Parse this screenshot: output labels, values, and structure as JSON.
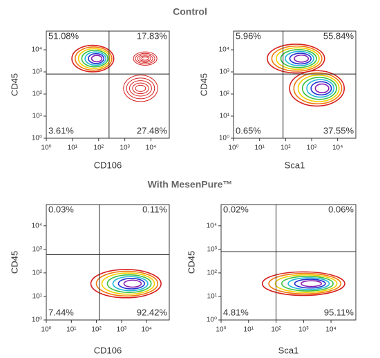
{
  "panel_titles": [
    "Control",
    "With MesenPure™"
  ],
  "chart_data": [
    {
      "type": "contour",
      "x_label": "CD106",
      "y_label": "CD45",
      "xscale": "log",
      "yscale": "log",
      "xlim": [
        1,
        50000
      ],
      "ylim": [
        1,
        70000
      ],
      "xticks": [
        {
          "value": 1,
          "label": "10⁰"
        },
        {
          "value": 10,
          "label": "10¹"
        },
        {
          "value": 100,
          "label": "10²"
        },
        {
          "value": 1000,
          "label": "10³"
        },
        {
          "value": 10000,
          "label": "10⁴"
        }
      ],
      "yticks": [
        {
          "value": 1,
          "label": "10⁰"
        },
        {
          "value": 10,
          "label": "10¹"
        },
        {
          "value": 100,
          "label": "10²"
        },
        {
          "value": 1000,
          "label": "10³"
        },
        {
          "value": 10000,
          "label": "10⁴"
        }
      ],
      "gate": {
        "x": 250,
        "y": 800
      },
      "quadrants": {
        "values": [
          51.08,
          17.83,
          3.61,
          27.48
        ],
        "value_labels": [
          "51.08%",
          "17.83%",
          "3.61%",
          "27.48%"
        ]
      },
      "contour_colors": [
        "#d62020",
        "#f07a10",
        "#f2d000",
        "#3cc040",
        "#20b8d8",
        "#2030d0",
        "#8a20b0"
      ],
      "populations": [
        {
          "x": 60,
          "y": 4000,
          "sx": 0.8,
          "sy": 0.6,
          "colored": true
        },
        {
          "x": 6000,
          "y": 4000,
          "sx": 0.45,
          "sy": 0.3,
          "colored": false
        },
        {
          "x": 4000,
          "y": 180,
          "sx": 0.65,
          "sy": 0.6,
          "colored": false
        }
      ]
    },
    {
      "type": "contour",
      "x_label": "Sca1",
      "y_label": "CD45",
      "xscale": "log",
      "yscale": "log",
      "xlim": [
        1,
        50000
      ],
      "ylim": [
        1,
        70000
      ],
      "xticks": [
        {
          "value": 1,
          "label": "10⁰"
        },
        {
          "value": 10,
          "label": "10¹"
        },
        {
          "value": 100,
          "label": "10²"
        },
        {
          "value": 1000,
          "label": "10³"
        },
        {
          "value": 10000,
          "label": "10⁴"
        }
      ],
      "yticks": [
        {
          "value": 1,
          "label": "10⁰"
        },
        {
          "value": 10,
          "label": "10¹"
        },
        {
          "value": 100,
          "label": "10²"
        },
        {
          "value": 1000,
          "label": "10³"
        },
        {
          "value": 10000,
          "label": "10⁴"
        }
      ],
      "gate": {
        "x": 80,
        "y": 800
      },
      "quadrants": {
        "values": [
          5.96,
          55.84,
          0.65,
          37.55
        ],
        "value_labels": [
          "5.96%",
          "55.84%",
          "0.65%",
          "37.55%"
        ]
      },
      "contour_colors": [
        "#d62020",
        "#f07a10",
        "#f2d000",
        "#3cc040",
        "#20b8d8",
        "#2030d0",
        "#8a20b0"
      ],
      "populations": [
        {
          "x": 250,
          "y": 4000,
          "sx": 1.1,
          "sy": 0.65,
          "colored": true
        },
        {
          "x": 1600,
          "y": 180,
          "sx": 1.05,
          "sy": 0.8,
          "colored": true
        }
      ]
    },
    {
      "type": "contour",
      "x_label": "CD106",
      "y_label": "CD45",
      "xscale": "log",
      "yscale": "log",
      "xlim": [
        1,
        80000
      ],
      "ylim": [
        1,
        80000
      ],
      "xticks": [
        {
          "value": 1,
          "label": "10⁰"
        },
        {
          "value": 10,
          "label": "10¹"
        },
        {
          "value": 100,
          "label": "10²"
        },
        {
          "value": 1000,
          "label": "10³"
        },
        {
          "value": 10000,
          "label": "10⁴"
        }
      ],
      "yticks": [
        {
          "value": 1,
          "label": "10⁰"
        },
        {
          "value": 10,
          "label": "10¹"
        },
        {
          "value": 100,
          "label": "10²"
        },
        {
          "value": 1000,
          "label": "10³"
        },
        {
          "value": 10000,
          "label": "10⁴"
        }
      ],
      "gate": {
        "x": 130,
        "y": 600
      },
      "quadrants": {
        "values": [
          0.03,
          0.11,
          7.44,
          92.42
        ],
        "value_labels": [
          "0.03%",
          "0.11%",
          "7.44%",
          "92.42%"
        ]
      },
      "contour_colors": [
        "#d62020",
        "#f07a10",
        "#f2d000",
        "#3cc040",
        "#20b8d8",
        "#2030d0",
        "#8a20b0"
      ],
      "populations": [
        {
          "x": 1500,
          "y": 35,
          "sx": 1.4,
          "sy": 0.6,
          "colored": true
        }
      ]
    },
    {
      "type": "contour",
      "x_label": "Sca1",
      "y_label": "CD45",
      "xscale": "log",
      "yscale": "log",
      "xlim": [
        1,
        80000
      ],
      "ylim": [
        1,
        80000
      ],
      "xticks": [
        {
          "value": 1,
          "label": "10⁰"
        },
        {
          "value": 10,
          "label": "10¹"
        },
        {
          "value": 100,
          "label": "10²"
        },
        {
          "value": 1000,
          "label": "10³"
        },
        {
          "value": 10000,
          "label": "10⁴"
        }
      ],
      "yticks": [
        {
          "value": 1,
          "label": "10⁰"
        },
        {
          "value": 10,
          "label": "10¹"
        },
        {
          "value": 100,
          "label": "10²"
        },
        {
          "value": 1000,
          "label": "10³"
        },
        {
          "value": 10000,
          "label": "10⁴"
        }
      ],
      "gate": {
        "x": 100,
        "y": 800
      },
      "quadrants": {
        "values": [
          0.02,
          0.06,
          4.81,
          95.11
        ],
        "value_labels": [
          "0.02%",
          "0.06%",
          "4.81%",
          "95.11%"
        ]
      },
      "contour_colors": [
        "#d62020",
        "#f07a10",
        "#f2d000",
        "#3cc040",
        "#20b8d8",
        "#2030d0",
        "#8a20b0"
      ],
      "populations": [
        {
          "x": 1000,
          "y": 35,
          "sx": 1.5,
          "sy": 0.5,
          "colored": true
        }
      ]
    }
  ]
}
